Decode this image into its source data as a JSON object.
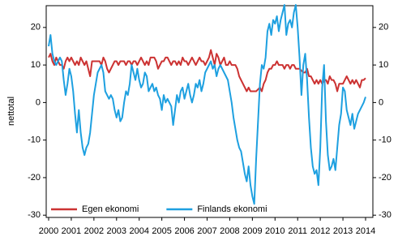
{
  "chart_data": {
    "type": "line",
    "y_label": "nettotal",
    "categories": [
      "2000",
      null,
      null,
      null,
      null,
      null,
      null,
      null,
      null,
      null,
      null,
      null,
      "2001",
      null,
      null,
      null,
      null,
      null,
      null,
      null,
      null,
      null,
      null,
      null,
      "2002",
      null,
      null,
      null,
      null,
      null,
      null,
      null,
      null,
      null,
      null,
      null,
      "2003",
      null,
      null,
      null,
      null,
      null,
      null,
      null,
      null,
      null,
      null,
      null,
      "2004",
      null,
      null,
      null,
      null,
      null,
      null,
      null,
      null,
      null,
      null,
      null,
      "2005",
      null,
      null,
      null,
      null,
      null,
      null,
      null,
      null,
      null,
      null,
      null,
      "2006",
      null,
      null,
      null,
      null,
      null,
      null,
      null,
      null,
      null,
      null,
      null,
      "2007",
      null,
      null,
      null,
      null,
      null,
      null,
      null,
      null,
      null,
      null,
      null,
      "2008",
      null,
      null,
      null,
      null,
      null,
      null,
      null,
      null,
      null,
      null,
      null,
      "2009",
      null,
      null,
      null,
      null,
      null,
      null,
      null,
      null,
      null,
      null,
      null,
      "2010",
      null,
      null,
      null,
      null,
      null,
      null,
      null,
      null,
      null,
      null,
      null,
      "2011",
      null,
      null,
      null,
      null,
      null,
      null,
      null,
      null,
      null,
      null,
      null,
      "2012",
      null,
      null,
      null,
      null,
      null,
      null,
      null,
      null,
      null,
      null,
      null,
      "2013",
      null,
      null,
      null,
      null,
      null,
      null,
      null,
      null,
      null,
      null,
      null,
      "2014"
    ],
    "series": [
      {
        "name": "Egen ekonomi",
        "color": "#cc3333",
        "values": [
          12,
          13,
          11,
          10,
          12,
          11,
          10,
          10,
          9,
          11,
          12,
          11,
          12,
          11,
          10,
          11,
          10,
          12,
          11,
          10,
          11,
          9,
          7,
          11,
          11,
          11,
          11,
          11,
          10,
          12,
          11,
          9,
          8,
          9,
          10,
          11,
          11,
          10,
          11,
          11,
          11,
          10,
          11,
          11,
          10,
          11,
          11,
          10,
          11,
          12,
          11,
          10,
          11,
          10,
          12,
          12,
          12,
          11,
          9,
          10,
          11,
          11,
          12,
          12,
          11,
          10,
          11,
          11,
          10,
          11,
          10,
          12,
          11,
          11,
          10,
          11,
          12,
          11,
          10,
          11,
          12,
          11,
          11,
          10,
          11,
          12,
          14,
          12,
          10,
          13,
          12,
          10,
          11,
          12,
          10,
          10,
          11,
          10,
          10,
          10,
          9,
          7,
          6,
          5,
          4,
          3,
          4,
          3,
          3,
          3,
          3,
          3.5,
          4,
          3,
          5,
          6,
          8,
          9,
          9,
          10,
          10,
          11,
          10,
          10,
          10,
          9,
          10,
          10,
          9,
          10,
          10,
          9,
          9,
          9,
          8.5,
          8,
          8,
          9,
          7,
          7,
          6,
          5,
          6,
          5,
          6,
          5,
          6,
          6,
          5,
          7,
          6,
          6,
          5,
          3,
          5,
          5,
          5,
          6,
          7,
          6,
          5,
          6,
          5,
          6,
          5,
          4,
          6,
          6,
          6.5
        ]
      },
      {
        "name": "Finlands ekonomi",
        "color": "#1ea0e0",
        "values": [
          15,
          18,
          13,
          11,
          10,
          11,
          12,
          11,
          6,
          2,
          5,
          9,
          7,
          3,
          -3,
          -8,
          -2,
          -8,
          -12,
          -14,
          -12,
          -11,
          -8,
          -3,
          2,
          5,
          8,
          9,
          10,
          8,
          3,
          2,
          1,
          2,
          1,
          -2,
          -4,
          -2,
          -5,
          -4,
          0,
          3,
          2,
          5,
          10,
          8,
          6,
          9,
          6,
          4,
          5,
          8,
          7,
          3,
          4,
          5,
          3,
          4,
          2,
          1,
          -2,
          2,
          0,
          1,
          0,
          -1,
          -6,
          -2,
          2,
          0,
          3,
          4,
          1,
          3,
          5,
          2,
          0,
          2,
          5,
          4,
          6,
          3,
          5,
          8,
          9,
          10,
          11,
          9,
          10,
          7,
          9,
          10,
          9,
          8,
          7,
          6,
          3,
          0,
          -4,
          -7,
          -10,
          -12,
          -13,
          -16,
          -19,
          -21,
          -17,
          -22,
          -25,
          -27,
          -15,
          -5,
          5,
          10,
          9,
          12,
          19,
          21,
          18,
          22,
          21,
          23,
          19,
          22,
          24,
          26,
          18,
          21,
          22,
          20,
          24,
          26,
          20,
          12,
          2,
          10,
          13,
          6,
          -4,
          -12,
          -17,
          -19,
          -18,
          -22,
          -12,
          4,
          10,
          -5,
          -14,
          -18,
          -17,
          -15,
          -18,
          -12,
          -6,
          -3,
          4,
          3,
          -2,
          -4,
          -6,
          -3,
          -7,
          -5,
          -3,
          -2,
          -1,
          0,
          1.5
        ]
      }
    ],
    "ylim": [
      -30.6,
      25.8
    ],
    "yticks": [
      -30,
      -20,
      -10,
      0,
      10,
      20
    ],
    "grid": false,
    "legend": "lower left"
  }
}
